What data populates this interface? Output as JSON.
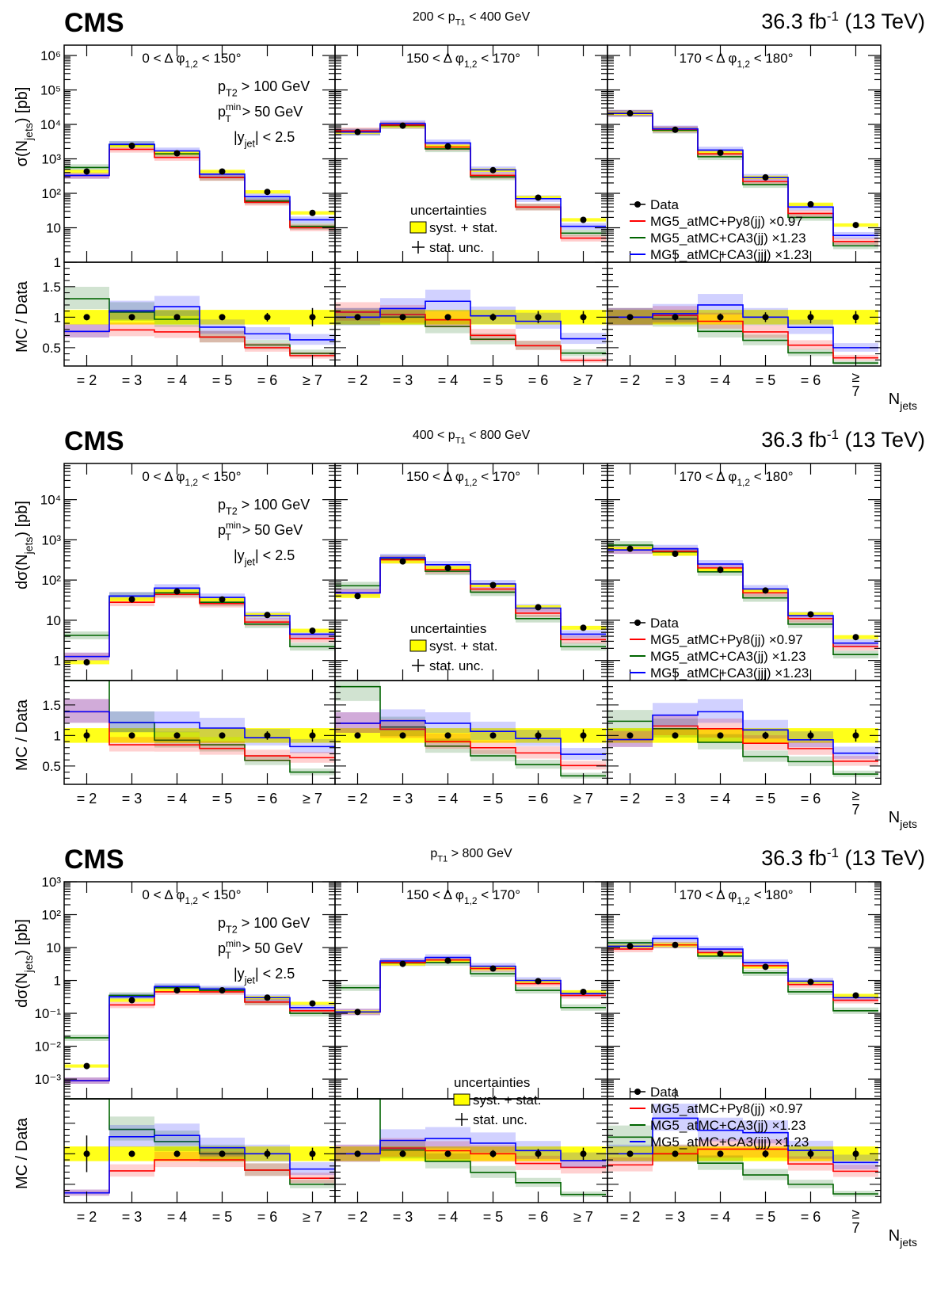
{
  "chart_data": [
    {
      "type": "step",
      "cms_label": "CMS",
      "pt_range": {
        "pre": "200 < p",
        "sub": "T1",
        "post": " < 400 GeV"
      },
      "lumi": {
        "pre": "36.3 fb",
        "sup": "-1",
        "post": " (13 TeV)"
      },
      "ylabel": {
        "pre": "σ(N",
        "sub": "jets",
        "post": ") [pb]"
      },
      "ratio_ylabel": "MC / Data",
      "xlabel": "N",
      "xlabel_sub": "jets",
      "categories": [
        "= 2",
        "= 3",
        "= 4",
        "= 5",
        "= 6",
        "≥ 7"
      ],
      "ymin_exp": 0,
      "ymax_exp": 6.3,
      "ytick_labels": [
        "1",
        "10",
        "10²",
        "10³",
        "10⁴",
        "10⁵",
        "10⁶"
      ],
      "ratio_range": [
        0.2,
        1.9
      ],
      "ratio_tick_labels": [
        "0.5",
        "1",
        "1.5"
      ],
      "cuts": {
        "pt2": "> 100 GeV",
        "ptmin": ">  50 GeV",
        "yjet": "<  2.5"
      },
      "legend_panel": 2,
      "uncertainties_panel": 1,
      "panels": [
        {
          "label": {
            "pre": "0 < Δ φ",
            "sub": "1,2",
            "post": " < 150°"
          },
          "data": [
            430,
            2400,
            1450,
            430,
            110,
            27
          ],
          "data_err": [
            0.05,
            0.05,
            0.05,
            0.05,
            0.07,
            0.15
          ],
          "red": [
            330,
            1900,
            1100,
            290,
            55,
            10
          ],
          "green": [
            560,
            2600,
            1400,
            290,
            60,
            11
          ],
          "blue": [
            330,
            2650,
            1700,
            360,
            80,
            17
          ]
        },
        {
          "label": {
            "pre": "150 < Δ φ",
            "sub": "1,2",
            "post": " < 170°"
          },
          "data": [
            6000,
            9200,
            2300,
            470,
            75,
            17
          ],
          "data_err": [
            0.04,
            0.05,
            0.05,
            0.06,
            0.1,
            0.1
          ],
          "red": [
            6500,
            9600,
            2200,
            330,
            40,
            5
          ],
          "green": [
            6000,
            9200,
            1950,
            300,
            40,
            7
          ],
          "blue": [
            6000,
            10500,
            2900,
            480,
            70,
            11
          ]
        },
        {
          "label": {
            "pre": "170 < Δ φ",
            "sub": "1,2",
            "post": " < 180°"
          },
          "data": [
            21000,
            7000,
            1500,
            290,
            48,
            12
          ],
          "data_err": [
            0.04,
            0.05,
            0.06,
            0.08,
            0.1,
            0.1
          ],
          "red": [
            21000,
            7200,
            1400,
            220,
            26,
            4
          ],
          "green": [
            21000,
            6800,
            1150,
            180,
            20,
            3
          ],
          "blue": [
            21000,
            7400,
            1800,
            290,
            40,
            6
          ]
        }
      ]
    },
    {
      "type": "step",
      "cms_label": "CMS",
      "pt_range": {
        "pre": "400 < p",
        "sub": "T1",
        "post": " < 800 GeV"
      },
      "lumi": {
        "pre": "36.3 fb",
        "sup": "-1",
        "post": " (13 TeV)"
      },
      "ylabel": {
        "pre": "dσ(N",
        "sub": "jets",
        "post": ") [pb]"
      },
      "ratio_ylabel": "MC / Data",
      "xlabel": "N",
      "xlabel_sub": "jets",
      "categories": [
        "= 2",
        "= 3",
        "= 4",
        "= 5",
        "= 6",
        "≥ 7"
      ],
      "ymin_exp": -0.5,
      "ymax_exp": 4.9,
      "ytick_labels": [
        "1",
        "10",
        "10²",
        "10³",
        "10⁴"
      ],
      "ratio_range": [
        0.2,
        1.9
      ],
      "ratio_tick_labels": [
        "0.5",
        "1",
        "1.5"
      ],
      "cuts": {
        "pt2": "> 100 GeV",
        "ptmin": ">  50 GeV",
        "yjet": "<  2.5"
      },
      "legend_panel": 2,
      "uncertainties_panel": 1,
      "panels": [
        {
          "label": {
            "pre": "0 < Δ φ",
            "sub": "1,2",
            "post": " < 150°"
          },
          "data": [
            0.9,
            33,
            52,
            33,
            13.5,
            5.5
          ],
          "data_err": [
            0.1,
            0.05,
            0.05,
            0.05,
            0.07,
            0.1
          ],
          "red": [
            1.25,
            28,
            44,
            26,
            9,
            3.5
          ],
          "green": [
            4.2,
            40,
            48,
            28,
            8,
            2.2
          ],
          "blue": [
            1.25,
            40,
            63,
            37,
            13,
            4.5
          ]
        },
        {
          "label": {
            "pre": "150 < Δ φ",
            "sub": "1,2",
            "post": " < 170°"
          },
          "data": [
            40,
            290,
            200,
            75,
            21,
            6.5
          ],
          "data_err": [
            0.04,
            0.05,
            0.05,
            0.05,
            0.08,
            0.1
          ],
          "red": [
            48,
            320,
            180,
            60,
            15,
            3.3
          ],
          "green": [
            72,
            330,
            165,
            50,
            11,
            2.2
          ],
          "blue": [
            48,
            360,
            240,
            80,
            20,
            4.5
          ]
        },
        {
          "label": {
            "pre": "170 < Δ φ",
            "sub": "1,2",
            "post": " < 180°"
          },
          "data": [
            600,
            450,
            180,
            55,
            14,
            3.8
          ],
          "data_err": [
            0.04,
            0.05,
            0.05,
            0.06,
            0.08,
            0.1
          ],
          "red": [
            560,
            520,
            200,
            48,
            11,
            2.2
          ],
          "green": [
            740,
            500,
            160,
            36,
            8,
            1.4
          ],
          "blue": [
            560,
            600,
            250,
            60,
            13,
            2.7
          ]
        }
      ]
    },
    {
      "type": "step",
      "cms_label": "CMS",
      "pt_range": {
        "pre": "p",
        "sub": "T1",
        "post": " > 800 GeV"
      },
      "lumi": {
        "pre": "36.3 fb",
        "sup": "-1",
        "post": " (13 TeV)"
      },
      "ylabel": {
        "pre": "dσ(N",
        "sub": "jets",
        "post": ") [pb]"
      },
      "ratio_ylabel": "MC / Data",
      "xlabel": "N",
      "xlabel_sub": "jets",
      "categories": [
        "= 2",
        "= 3",
        "= 4",
        "= 5",
        "= 6",
        "≥ 7"
      ],
      "ymin_exp": -3.6,
      "ymax_exp": 3,
      "ytick_labels": [
        "10⁻³",
        "10⁻²",
        "10⁻¹",
        "1",
        "10",
        "10²",
        "10³"
      ],
      "ytick_exps": [
        -3,
        -2,
        -1,
        0,
        1,
        2,
        3
      ],
      "ratio_range": [
        0.2,
        1.9
      ],
      "ratio_tick_labels": [],
      "cuts": {
        "pt2": "> 100 GeV",
        "ptmin": ">  50 GeV",
        "yjet": "<  2.5"
      },
      "legend_panel": 2,
      "uncertainties_panel": 1,
      "panels": [
        {
          "label": {
            "pre": "0 < Δ φ",
            "sub": "1,2",
            "post": " < 150°"
          },
          "data": [
            0.0025,
            0.25,
            0.5,
            0.5,
            0.3,
            0.2
          ],
          "data_err": [
            0.3,
            0.05,
            0.05,
            0.05,
            0.08,
            0.1
          ],
          "red": [
            0.0009,
            0.18,
            0.45,
            0.45,
            0.22,
            0.12
          ],
          "green": [
            0.018,
            0.35,
            0.6,
            0.5,
            0.22,
            0.1
          ],
          "blue": [
            0.0009,
            0.32,
            0.65,
            0.55,
            0.3,
            0.15
          ]
        },
        {
          "label": {
            "pre": "150 < Δ φ",
            "sub": "1,2",
            "post": " < 170°"
          },
          "data": [
            0.11,
            3.2,
            4,
            2.3,
            0.95,
            0.45
          ],
          "data_err": [
            0.04,
            0.05,
            0.05,
            0.06,
            0.08,
            0.1
          ],
          "red": [
            0.11,
            3.5,
            4.2,
            2.3,
            0.8,
            0.35
          ],
          "green": [
            0.6,
            3.4,
            3.5,
            1.6,
            0.5,
            0.15
          ],
          "blue": [
            0.11,
            3.9,
            5,
            2.7,
            1,
            0.4
          ]
        },
        {
          "label": {
            "pre": "170 < Δ φ",
            "sub": "1,2",
            "post": " < 180°"
          },
          "data": [
            11,
            12,
            6.5,
            2.6,
            0.9,
            0.35
          ],
          "data_err": [
            0.04,
            0.05,
            0.05,
            0.06,
            0.08,
            0.1
          ],
          "red": [
            9,
            12,
            7,
            2.8,
            0.75,
            0.25
          ],
          "green": [
            14,
            12,
            5.5,
            1.7,
            0.45,
            0.12
          ],
          "blue": [
            11,
            19,
            9,
            3.5,
            0.95,
            0.3
          ]
        }
      ]
    }
  ],
  "legend": {
    "data": "Data",
    "red": "MG5_atMC+Py8(jj) ×0.97",
    "green": "MG5_atMC+CA3(jj) ×1.23",
    "blue": "MG5_atMC+CA3(jjj) ×1.23"
  },
  "uncertainties": {
    "title": "uncertainties",
    "syst": "syst. + stat.",
    "stat": "stat. unc."
  },
  "cut_labels": {
    "pt2_sub": "T2",
    "ptmin_sub": "T",
    "ptmin_sup": "min",
    "yjet_sub": "jet"
  },
  "colors": {
    "red": "#ff0000",
    "green": "#006400",
    "blue": "#0000ff",
    "syst": "#ffff00",
    "data": "#000000"
  }
}
